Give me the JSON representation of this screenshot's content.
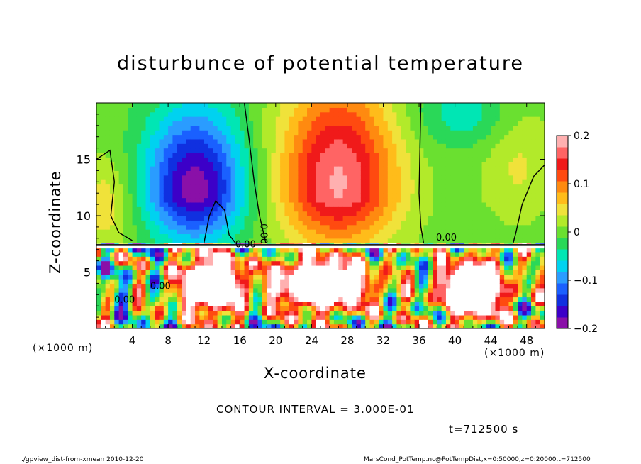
{
  "chart_data": {
    "type": "heatmap",
    "title": "disturbunce of potential temperature",
    "xlabel": "X-coordinate",
    "ylabel": "Z-coordinate",
    "x_unit_left": "(×1000 m)",
    "x_unit_right": "(×1000 m)",
    "xlim": [
      0,
      50
    ],
    "ylim": [
      0,
      20
    ],
    "x_ticks": [
      4,
      8,
      12,
      16,
      20,
      24,
      28,
      32,
      36,
      40,
      44,
      48
    ],
    "y_ticks": [
      5,
      10,
      15
    ],
    "colorbar": {
      "range": [
        -0.2,
        0.2
      ],
      "ticks": [
        {
          "value": 0.2,
          "label": "0.2"
        },
        {
          "value": 0.1,
          "label": "0.1"
        },
        {
          "value": 0,
          "label": "0"
        },
        {
          "value": -0.1,
          "label": "−0.1"
        },
        {
          "value": -0.2,
          "label": "−0.2"
        }
      ]
    },
    "contour_labels": [
      {
        "text": "0.00",
        "x": 18.3,
        "z": 9.3,
        "rotate": 90
      },
      {
        "text": "0.00",
        "x": 15.5,
        "z": 7.2
      },
      {
        "text": "0.00",
        "x": 37.9,
        "z": 7.8
      },
      {
        "text": "0.00",
        "x": 6.0,
        "z": 3.5
      },
      {
        "text": "0.00",
        "x": 2.0,
        "z": 2.3
      }
    ],
    "contour_interval_text": "CONTOUR INTERVAL = 3.000E-01",
    "time_text": "t=712500 s",
    "grid": false
  },
  "footer": {
    "left": "./gpview_dist-from-xmean  2010-12-20",
    "right": "MarsCond_PotTemp.nc@PotTempDist,x=0:50000,z=0:20000,t=712500"
  },
  "palette": [
    "#8a10a8",
    "#3c00c8",
    "#1030e0",
    "#1a60ff",
    "#2a9cff",
    "#00d2f0",
    "#00e6b4",
    "#2ad858",
    "#6ae030",
    "#b2ea2a",
    "#f0e23a",
    "#ffbc1a",
    "#ff8a10",
    "#ff4a10",
    "#f01a1a",
    "#ff6464",
    "#ffb0b0"
  ]
}
